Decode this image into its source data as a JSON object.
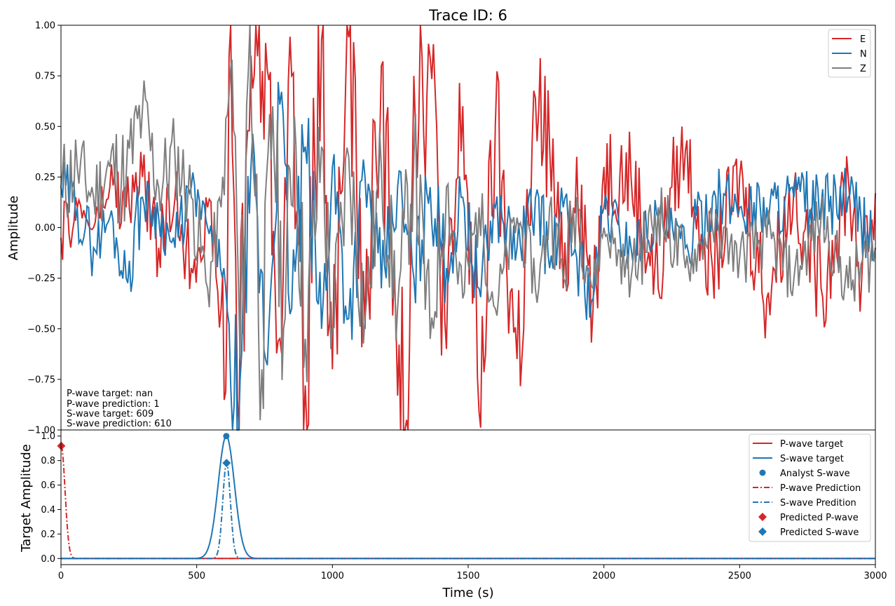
{
  "chart_data": [
    {
      "type": "line",
      "title": "Trace ID: 6",
      "xlabel": "",
      "ylabel": "Amplitude",
      "xlim": [
        0,
        3000
      ],
      "ylim": [
        -1.0,
        1.0
      ],
      "yticks": [
        "−1.00",
        "−0.75",
        "−0.50",
        "−0.25",
        "0.00",
        "0.25",
        "0.50",
        "0.75",
        "1.00"
      ],
      "ytick_values": [
        -1.0,
        -0.75,
        -0.5,
        -0.25,
        0.0,
        0.25,
        0.5,
        0.75,
        1.0
      ],
      "legend_position": "top-right",
      "series": [
        {
          "name": "E",
          "color": "#d62728",
          "x": [
            0,
            60,
            120,
            180,
            240,
            300,
            360,
            420,
            480,
            540,
            590,
            607,
            625,
            650,
            700,
            760,
            800,
            850,
            900,
            960,
            1000,
            1060,
            1120,
            1180,
            1240,
            1273,
            1300,
            1360,
            1420,
            1480,
            1540,
            1600,
            1680,
            1760,
            1800,
            1850,
            1900,
            1960,
            2000,
            2100,
            2200,
            2250,
            2300,
            2400,
            2500,
            2600,
            2700,
            2800,
            2900,
            2950,
            3000
          ],
          "y": [
            -0.05,
            0.1,
            0.0,
            0.2,
            0.1,
            0.25,
            -0.1,
            0.15,
            -0.2,
            0.1,
            -0.4,
            -0.81,
            1.0,
            -0.85,
            0.85,
            0.78,
            -0.56,
            0.75,
            -0.78,
            0.93,
            -0.7,
            0.94,
            -0.5,
            0.8,
            -0.83,
            -0.95,
            0.75,
            0.84,
            -0.6,
            0.6,
            -0.91,
            0.5,
            -0.65,
            0.58,
            0.4,
            -0.3,
            0.35,
            -0.4,
            0.3,
            0.25,
            -0.3,
            0.2,
            0.38,
            -0.2,
            0.25,
            -0.35,
            0.2,
            -0.3,
            0.25,
            -0.25,
            0.17
          ]
        },
        {
          "name": "N",
          "color": "#1f77b4",
          "x": [
            0,
            60,
            120,
            180,
            240,
            300,
            360,
            420,
            480,
            540,
            600,
            632,
            660,
            700,
            760,
            800,
            850,
            900,
            960,
            1000,
            1060,
            1120,
            1180,
            1240,
            1300,
            1360,
            1420,
            1480,
            1540,
            1600,
            1680,
            1760,
            1800,
            1850,
            1900,
            1960,
            2000,
            2100,
            2200,
            2300,
            2400,
            2500,
            2600,
            2700,
            2800,
            2900,
            3000
          ],
          "y": [
            0.2,
            0.1,
            -0.1,
            0.05,
            -0.25,
            0.15,
            0.05,
            -0.1,
            0.2,
            0.0,
            -0.2,
            -1.0,
            -0.75,
            0.3,
            -0.68,
            0.72,
            -0.4,
            0.4,
            -0.5,
            0.3,
            -0.45,
            0.25,
            -0.3,
            0.2,
            -0.25,
            0.2,
            -0.2,
            0.15,
            -0.3,
            0.1,
            -0.1,
            0.15,
            -0.2,
            0.1,
            -0.15,
            -0.35,
            0.1,
            -0.1,
            0.05,
            -0.1,
            0.15,
            0.1,
            0.1,
            0.15,
            0.1,
            0.15,
            -0.1
          ]
        },
        {
          "name": "Z",
          "color": "#7f7f7f",
          "x": [
            0,
            60,
            120,
            180,
            240,
            300,
            360,
            420,
            480,
            540,
            590,
            630,
            660,
            696,
            740,
            780,
            820,
            860,
            900,
            960,
            1000,
            1060,
            1120,
            1180,
            1240,
            1300,
            1360,
            1420,
            1480,
            1540,
            1600,
            1680,
            1760,
            1800,
            1850,
            1900,
            1960,
            2000,
            2100,
            2200,
            2300,
            2400,
            2500,
            2600,
            2700,
            2800,
            2900,
            3000
          ],
          "y": [
            0.2,
            0.3,
            0.15,
            0.3,
            0.25,
            0.58,
            0.2,
            0.35,
            0.15,
            -0.3,
            0.1,
            0.83,
            -0.65,
            1.0,
            -0.7,
            0.6,
            -0.5,
            0.55,
            -0.55,
            0.4,
            -0.5,
            0.35,
            -0.45,
            0.3,
            -0.4,
            0.35,
            -0.55,
            0.2,
            -0.35,
            0.1,
            -0.4,
            0.05,
            -0.3,
            0.1,
            -0.25,
            0.15,
            -0.3,
            0.0,
            -0.25,
            0.1,
            -0.2,
            0.0,
            -0.15,
            -0.05,
            -0.25,
            0.05,
            -0.3,
            -0.1
          ]
        }
      ]
    },
    {
      "type": "line",
      "title": "",
      "xlabel": "Time (s)",
      "ylabel": "Target Amplitude",
      "xlim": [
        0,
        3000
      ],
      "ylim": [
        -0.05,
        1.05
      ],
      "xticks": [
        "0",
        "500",
        "1000",
        "1500",
        "2000",
        "2500",
        "3000"
      ],
      "xtick_values": [
        0,
        500,
        1000,
        1500,
        2000,
        2500,
        3000
      ],
      "yticks": [
        "0.0",
        "0.2",
        "0.4",
        "0.6",
        "0.8",
        "1.0"
      ],
      "ytick_values": [
        0.0,
        0.2,
        0.4,
        0.6,
        0.8,
        1.0
      ],
      "legend_position": "top-right",
      "series": [
        {
          "name": "P-wave target",
          "color": "#d62728",
          "style": "solid",
          "peak_x": 0,
          "peak_y": 0.0,
          "sigma": 20
        },
        {
          "name": "S-wave target",
          "color": "#1f77b4",
          "style": "solid",
          "peak_x": 609,
          "peak_y": 1.0,
          "sigma": 30
        },
        {
          "name": "Analyst S-wave",
          "color": "#1f77b4",
          "marker": "circle",
          "x": 609,
          "y": 1.0
        },
        {
          "name": "P-wave Prediction",
          "color": "#d62728",
          "style": "dashdot",
          "peak_x": 1,
          "peak_y": 0.92,
          "sigma": 14
        },
        {
          "name": "S-wave Predition",
          "color": "#1f77b4",
          "style": "dashdot",
          "peak_x": 610,
          "peak_y": 0.78,
          "sigma": 14
        },
        {
          "name": "Predicted P-wave",
          "color": "#d62728",
          "marker": "diamond",
          "x": 1,
          "y": 0.92
        },
        {
          "name": "Predicted S-wave",
          "color": "#1f77b4",
          "marker": "diamond",
          "x": 610,
          "y": 0.78
        }
      ]
    }
  ],
  "annotations": [
    "P-wave target: nan",
    "P-wave prediction: 1",
    "S-wave target: 609",
    "S-wave prediction: 610"
  ]
}
